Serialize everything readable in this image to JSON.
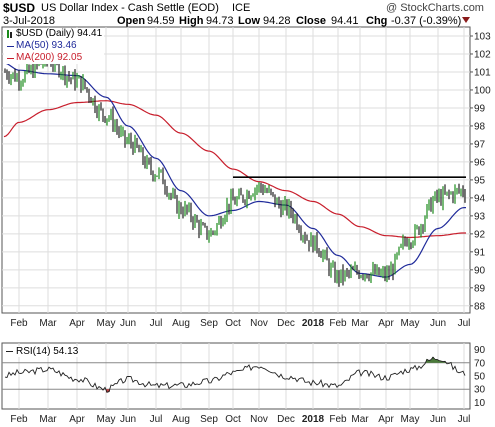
{
  "header": {
    "symbol": "$USD",
    "name": "US Dollar Index - Cash Settle (EOD)",
    "exchange": "ICE",
    "watermark": "@ StockCharts.com",
    "date": "3-Jul-2018",
    "open_label": "Open",
    "open": "94.59",
    "high_label": "High",
    "high": "94.73",
    "low_label": "Low",
    "low": "94.28",
    "close_label": "Close",
    "close": "94.41",
    "chg_label": "Chg",
    "chg": "-0.37 (-0.39%)",
    "chg_arrow": "down"
  },
  "legend": [
    {
      "text": "$USD (Daily) 94.41",
      "color": "#000000",
      "swatch": "price"
    },
    {
      "text": "MA(50) 93.46",
      "color": "#1f2a9a",
      "swatch": "line"
    },
    {
      "text": "MA(200) 92.05",
      "color": "#c81e2c",
      "swatch": "line"
    }
  ],
  "rsi_label": "RSI(14) 54.13",
  "colors": {
    "price_up": "#1a8a1a",
    "price_down": "#222222",
    "ma50": "#1f2a9a",
    "ma200": "#c81e2c",
    "resistance": "#000000",
    "grid": "#dddddd",
    "rsi_line": "#222222",
    "rsi_over": "#4a7a3a",
    "rsi_under": "#c04040"
  },
  "chart_data": [
    {
      "type": "line",
      "title": "$USD US Dollar Index - Cash Settle (EOD) ICE",
      "x_tick_labels": [
        "Feb",
        "Mar",
        "Apr",
        "May",
        "Jun",
        "Jul",
        "Aug",
        "Sep",
        "Oct",
        "Nov",
        "Dec",
        "2018",
        "Feb",
        "Mar",
        "Apr",
        "May",
        "Jun",
        "Jul"
      ],
      "y_tick_labels": [
        88,
        89,
        90,
        91,
        92,
        93,
        94,
        95,
        96,
        97,
        98,
        99,
        100,
        101,
        102,
        103
      ],
      "ylim": [
        87.6,
        103.5
      ],
      "grid": true,
      "legend_position": "top-left",
      "series": [
        {
          "name": "$USD (Daily)",
          "style": "price",
          "x": [
            "Jan",
            "Feb",
            "Mar",
            "Apr",
            "May",
            "Jun",
            "Jul",
            "Aug",
            "Sep",
            "Oct",
            "Nov",
            "Dec",
            "Jan 2018",
            "Feb",
            "Mar",
            "Apr",
            "May",
            "Jun",
            "Jul"
          ],
          "values": [
            101.0,
            100.7,
            101.6,
            100.5,
            98.6,
            97.1,
            95.4,
            93.4,
            92.0,
            93.8,
            94.6,
            93.4,
            91.5,
            89.6,
            89.9,
            89.7,
            91.8,
            94.0,
            94.41
          ]
        },
        {
          "name": "MA(50)",
          "x": [
            "Jan",
            "Feb",
            "Mar",
            "Apr",
            "May",
            "Jun",
            "Jul",
            "Aug",
            "Sep",
            "Oct",
            "Nov",
            "Dec",
            "Jan 2018",
            "Feb",
            "Mar",
            "Apr",
            "May",
            "Jun",
            "Jul"
          ],
          "values": [
            101.5,
            101.1,
            100.9,
            100.8,
            99.6,
            98.0,
            96.2,
            94.4,
            93.0,
            93.3,
            93.8,
            93.6,
            92.3,
            90.8,
            89.8,
            89.6,
            90.3,
            92.3,
            93.46
          ]
        },
        {
          "name": "MA(200)",
          "x": [
            "Jan",
            "Feb",
            "Mar",
            "Apr",
            "May",
            "Jun",
            "Jul",
            "Aug",
            "Sep",
            "Oct",
            "Nov",
            "Dec",
            "Jan 2018",
            "Feb",
            "Mar",
            "Apr",
            "May",
            "Jun",
            "Jul"
          ],
          "values": [
            97.4,
            98.2,
            98.9,
            99.3,
            99.4,
            99.2,
            98.6,
            97.6,
            96.6,
            95.6,
            94.9,
            94.4,
            93.8,
            93.1,
            92.4,
            91.9,
            91.8,
            91.9,
            92.05
          ]
        }
      ],
      "annotations": [
        {
          "type": "horizontal-line",
          "label": "resistance",
          "value": 95.15,
          "from": "Oct",
          "to": "Jul 2018"
        }
      ]
    },
    {
      "type": "line",
      "title": "RSI(14) 54.13",
      "x_tick_labels": [
        "Feb",
        "Mar",
        "Apr",
        "May",
        "Jun",
        "Jul",
        "Aug",
        "Sep",
        "Oct",
        "Nov",
        "Dec",
        "2018",
        "Feb",
        "Mar",
        "Apr",
        "May",
        "Jun",
        "Jul"
      ],
      "y_tick_labels": [
        10,
        30,
        50,
        70,
        90
      ],
      "ylim": [
        0,
        100
      ],
      "reference_lines": [
        30,
        70
      ],
      "series": [
        {
          "name": "RSI(14)",
          "x": [
            "Jan",
            "Feb",
            "Mar",
            "Apr",
            "May",
            "Jun",
            "Jul",
            "Aug",
            "Sep",
            "Oct",
            "Nov",
            "Dec",
            "Jan 2018",
            "Feb",
            "Mar",
            "Apr",
            "May",
            "Jun",
            "Jul"
          ],
          "values": [
            50,
            55,
            60,
            46,
            30,
            45,
            35,
            36,
            42,
            55,
            66,
            50,
            40,
            35,
            55,
            48,
            60,
            78,
            54.13
          ]
        }
      ]
    }
  ]
}
